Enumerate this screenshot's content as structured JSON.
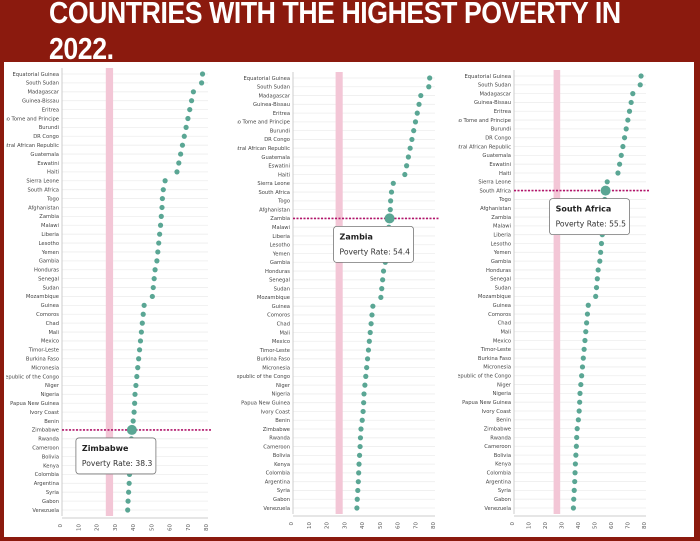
{
  "header": {
    "title": "COUNTRIES WITH THE HIGHEST POVERTY IN 2022."
  },
  "colors": {
    "background": "#8b1a0e",
    "dot": "#5aa694",
    "reference_band": "#f3c6d6",
    "highlight_line": "#b3156b",
    "grid": "#eeeeee"
  },
  "chart_data": [
    {
      "type": "scatter",
      "orientation": "horizontal",
      "categories": [
        "Equatorial Guinea",
        "South Sudan",
        "Madagascar",
        "Guinea-Bissau",
        "Eritrea",
        "Sao Tome and Principe",
        "Burundi",
        "DR Congo",
        "Central African Republic",
        "Guatemala",
        "Eswatini",
        "Haiti",
        "Sierra Leone",
        "South Africa",
        "Togo",
        "Afghanistan",
        "Zambia",
        "Malawi",
        "Liberia",
        "Lesotho",
        "Yemen",
        "Gambia",
        "Honduras",
        "Senegal",
        "Sudan",
        "Mozambique",
        "Guinea",
        "Comoros",
        "Chad",
        "Mali",
        "Mexico",
        "Timor-Leste",
        "Burkina Faso",
        "Micronesia",
        "Republic of the Congo",
        "Niger",
        "Nigeria",
        "Papua New Guinea",
        "Ivory Coast",
        "Benin",
        "Zimbabwe",
        "Rwanda",
        "Cameroon",
        "Bolivia",
        "Kenya",
        "Colombia",
        "Argentina",
        "Syria",
        "Gabon",
        "Venezuela"
      ],
      "values": [
        77,
        76.5,
        72,
        71,
        70,
        69,
        68,
        67,
        66,
        65,
        64,
        63,
        56.5,
        55.5,
        55,
        54.8,
        54.4,
        54,
        53.5,
        53,
        52.5,
        52,
        51,
        50.5,
        50,
        49.5,
        45,
        44.5,
        44,
        43.5,
        43,
        42.5,
        42,
        41.5,
        41,
        40.5,
        40,
        39.8,
        39.5,
        39,
        38.3,
        38,
        37.8,
        37.5,
        37.2,
        37,
        36.8,
        36.5,
        36.2,
        36
      ],
      "xlim": [
        0,
        80
      ],
      "xticks": [
        0,
        10,
        20,
        30,
        40,
        50,
        60,
        70,
        80
      ],
      "reference_band": [
        24,
        28
      ],
      "highlight": {
        "country": "Zimbabwe",
        "label": "Poverty Rate: 38.3"
      }
    },
    {
      "type": "scatter",
      "orientation": "horizontal",
      "categories": [
        "Equatorial Guinea",
        "South Sudan",
        "Madagascar",
        "Guinea-Bissau",
        "Eritrea",
        "Sao Tome and Principe",
        "Burundi",
        "DR Congo",
        "Central African Republic",
        "Guatemala",
        "Eswatini",
        "Haiti",
        "Sierra Leone",
        "South Africa",
        "Togo",
        "Afghanistan",
        "Zambia",
        "Malawi",
        "Liberia",
        "Lesotho",
        "Yemen",
        "Gambia",
        "Honduras",
        "Senegal",
        "Sudan",
        "Mozambique",
        "Guinea",
        "Comoros",
        "Chad",
        "Mali",
        "Mexico",
        "Timor-Leste",
        "Burkina Faso",
        "Micronesia",
        "Republic of the Congo",
        "Niger",
        "Nigeria",
        "Papua New Guinea",
        "Ivory Coast",
        "Benin",
        "Zimbabwe",
        "Rwanda",
        "Cameroon",
        "Bolivia",
        "Kenya",
        "Colombia",
        "Argentina",
        "Syria",
        "Gabon",
        "Venezuela"
      ],
      "values": [
        77,
        76.5,
        72,
        71,
        70,
        69,
        68,
        67,
        66,
        65,
        64,
        63,
        56.5,
        55.5,
        55,
        54.8,
        54.4,
        54,
        53.5,
        53,
        52.5,
        52,
        51,
        50.5,
        50,
        49.5,
        45,
        44.5,
        44,
        43.5,
        43,
        42.5,
        42,
        41.5,
        41,
        40.5,
        40,
        39.8,
        39.5,
        39,
        38.3,
        38,
        37.8,
        37.5,
        37.2,
        37,
        36.8,
        36.5,
        36.2,
        36
      ],
      "xlim": [
        0,
        80
      ],
      "xticks": [
        0,
        10,
        20,
        30,
        40,
        50,
        60,
        70,
        80
      ],
      "reference_band": [
        24,
        28
      ],
      "highlight": {
        "country": "Zambia",
        "label": "Poverty Rate: 54.4"
      }
    },
    {
      "type": "scatter",
      "orientation": "horizontal",
      "categories": [
        "Equatorial Guinea",
        "South Sudan",
        "Madagascar",
        "Guinea-Bissau",
        "Eritrea",
        "Sao Tome and Principe",
        "Burundi",
        "DR Congo",
        "Central African Republic",
        "Guatemala",
        "Eswatini",
        "Haiti",
        "Sierra Leone",
        "South Africa",
        "Togo",
        "Afghanistan",
        "Zambia",
        "Malawi",
        "Liberia",
        "Lesotho",
        "Yemen",
        "Gambia",
        "Honduras",
        "Senegal",
        "Sudan",
        "Mozambique",
        "Guinea",
        "Comoros",
        "Chad",
        "Mali",
        "Mexico",
        "Timor-Leste",
        "Burkina Faso",
        "Micronesia",
        "Republic of the Congo",
        "Niger",
        "Nigeria",
        "Papua New Guinea",
        "Ivory Coast",
        "Benin",
        "Zimbabwe",
        "Rwanda",
        "Cameroon",
        "Bolivia",
        "Kenya",
        "Colombia",
        "Argentina",
        "Syria",
        "Gabon",
        "Venezuela"
      ],
      "values": [
        77,
        76.5,
        72,
        71,
        70,
        69,
        68,
        67,
        66,
        65,
        64,
        63,
        56.5,
        55.5,
        55,
        54.8,
        54.4,
        54,
        53.5,
        53,
        52.5,
        52,
        51,
        50.5,
        50,
        49.5,
        45,
        44.5,
        44,
        43.5,
        43,
        42.5,
        42,
        41.5,
        41,
        40.5,
        40,
        39.8,
        39.5,
        39,
        38.3,
        38,
        37.8,
        37.5,
        37.2,
        37,
        36.8,
        36.5,
        36.2,
        36
      ],
      "xlim": [
        0,
        80
      ],
      "xticks": [
        0,
        10,
        20,
        30,
        40,
        50,
        60,
        70,
        80
      ],
      "reference_band": [
        24,
        28
      ],
      "highlight": {
        "country": "South Africa",
        "label": "Poverty Rate: 55.5"
      }
    }
  ]
}
